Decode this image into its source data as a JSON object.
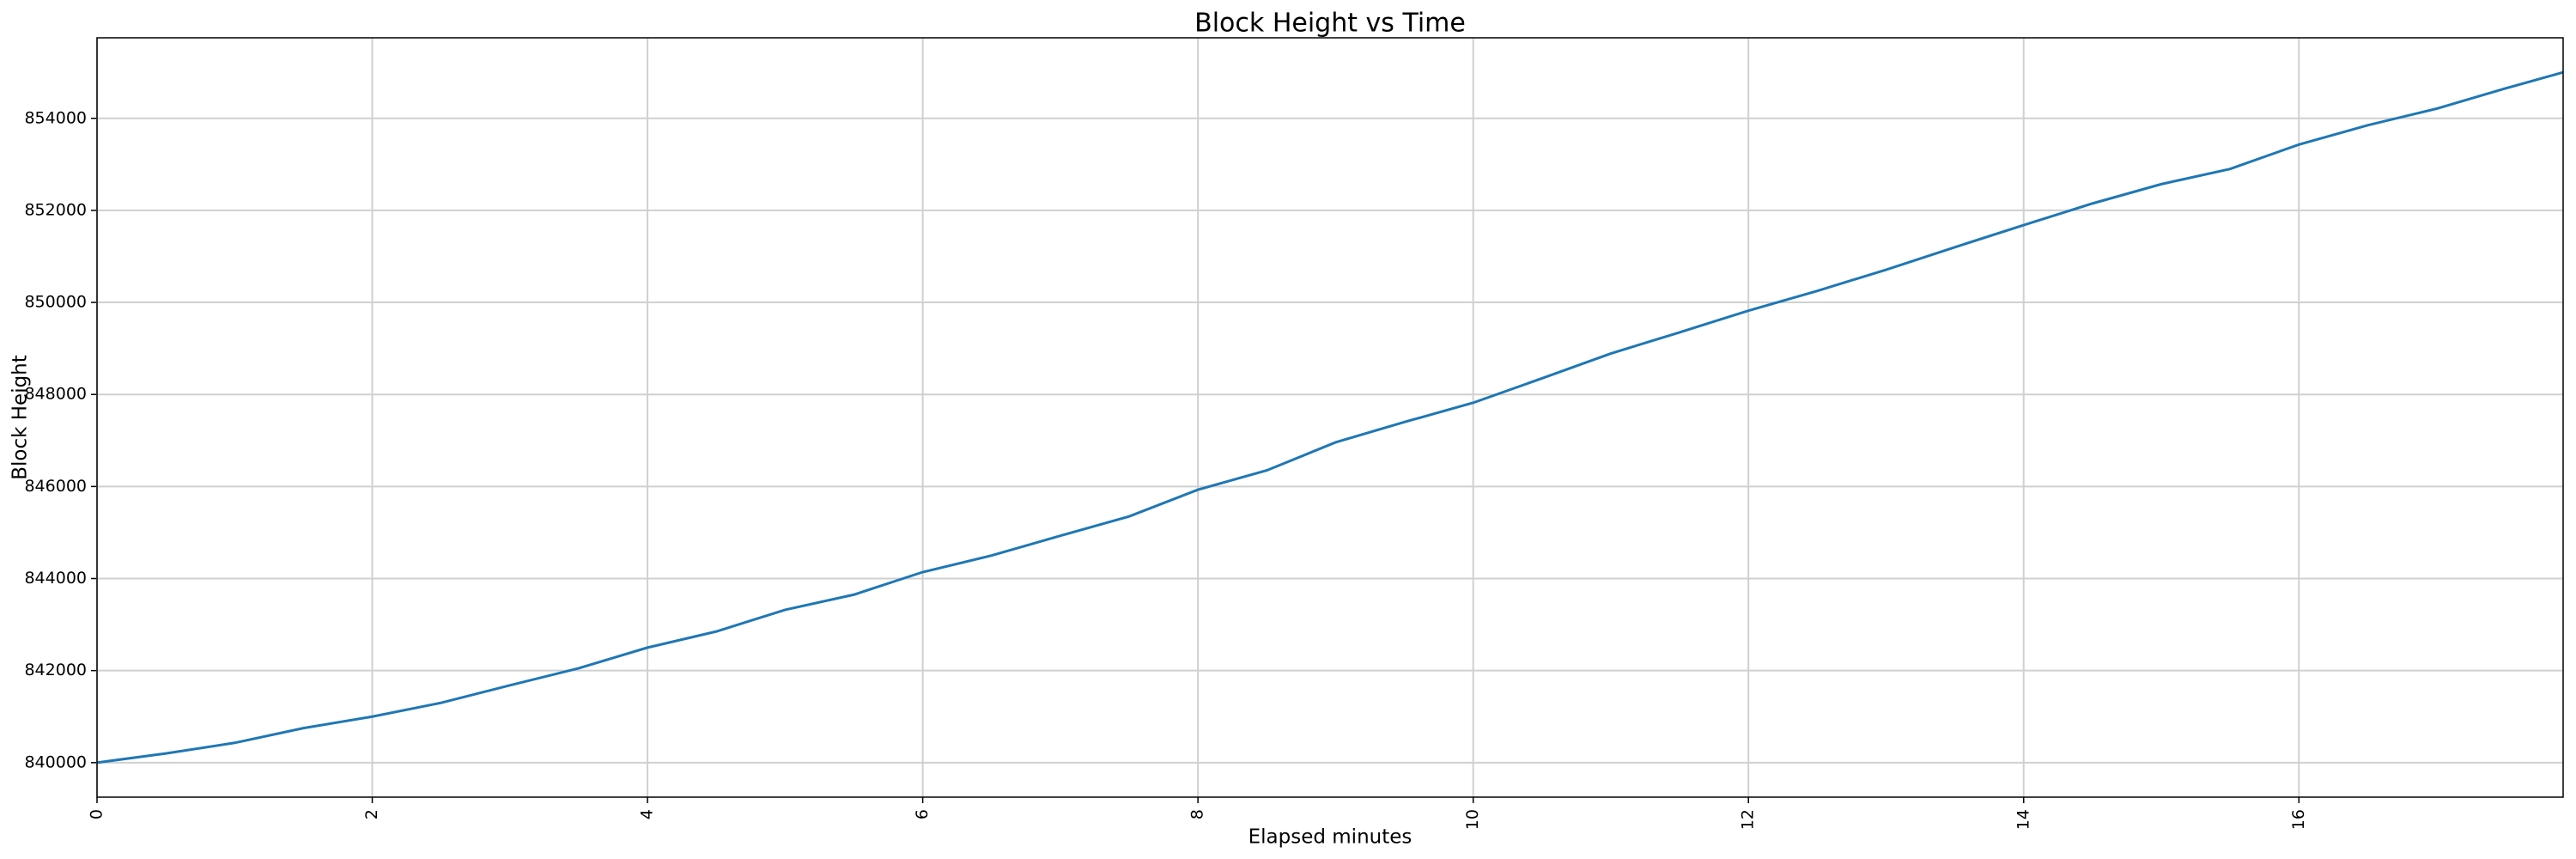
{
  "chart_data": {
    "type": "line",
    "title": "Block Height vs Time",
    "x_label": "Elapsed minutes",
    "y_label": "Block Height",
    "x": [
      0,
      0.5,
      1,
      1.5,
      2,
      2.5,
      3,
      3.5,
      4,
      4.5,
      5,
      5.5,
      6,
      6.5,
      7,
      7.5,
      8,
      8.5,
      9,
      9.5,
      10,
      10.5,
      11,
      11.5,
      12,
      12.5,
      13,
      13.5,
      14,
      14.5,
      15,
      15.5,
      16,
      16.5,
      17,
      17.5,
      17.92
    ],
    "values": [
      840000,
      840200,
      840430,
      840750,
      841000,
      841300,
      841680,
      842050,
      842500,
      842850,
      843320,
      843650,
      844140,
      844500,
      844930,
      845350,
      845930,
      846350,
      846960,
      847400,
      847820,
      848350,
      848890,
      849350,
      849820,
      850250,
      850710,
      851200,
      851680,
      852150,
      852570,
      852900,
      853430,
      853850,
      854210,
      854650,
      855000
    ],
    "color": "#1f77b4",
    "xlim": [
      0,
      17.92
    ],
    "ylim": [
      839250,
      855750
    ],
    "xticks": [
      0,
      2,
      4,
      6,
      8,
      10,
      12,
      14,
      16
    ],
    "yticks": [
      840000,
      842000,
      844000,
      846000,
      848000,
      850000,
      852000,
      854000
    ],
    "grid": true
  }
}
